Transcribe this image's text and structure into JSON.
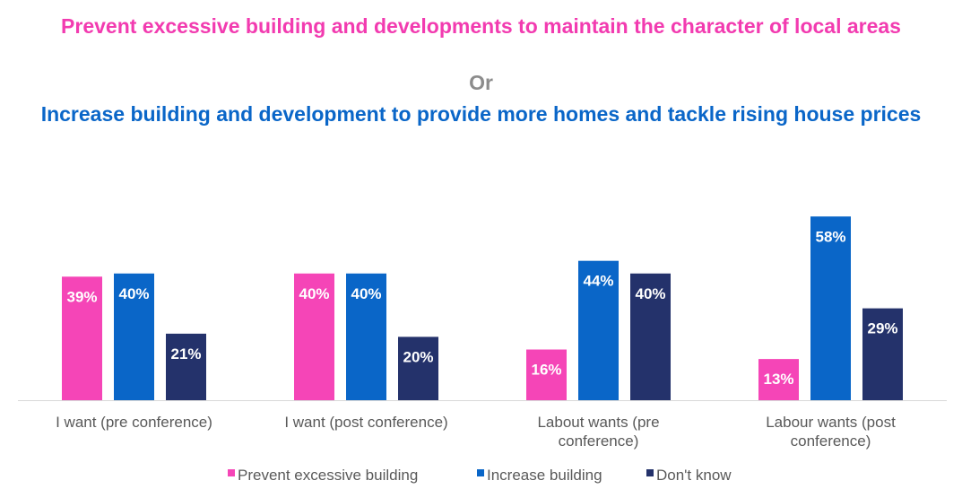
{
  "title": {
    "line1": "Prevent excessive building and developments to maintain the character of local areas",
    "line2": "Or",
    "line3": "Increase building and development to provide more homes and tackle rising house prices",
    "color1": "#f23bb0",
    "color2": "#8c8c8c",
    "color3": "#0a66c8"
  },
  "chart_data": {
    "type": "bar",
    "categories": [
      [
        "I want (pre conference)"
      ],
      [
        "I want (post conference)"
      ],
      [
        "Labout wants (pre",
        "conference)"
      ],
      [
        "Labour wants (post",
        "conference)"
      ]
    ],
    "series": [
      {
        "name": "Prevent excessive building",
        "color": "#f545b7",
        "values": [
          39,
          40,
          16,
          13
        ],
        "labels": [
          "39%",
          "40%",
          "16%",
          "13%"
        ]
      },
      {
        "name": "Increase building",
        "color": "#0a66c8",
        "values": [
          40,
          40,
          44,
          58
        ],
        "labels": [
          "40%",
          "40%",
          "44%",
          "58%"
        ]
      },
      {
        "name": "Don't know",
        "color": "#24326b",
        "values": [
          21,
          20,
          40,
          29
        ],
        "labels": [
          "21%",
          "20%",
          "40%",
          "29%"
        ]
      }
    ],
    "ylim": [
      0,
      60
    ],
    "legend_position": "bottom"
  }
}
